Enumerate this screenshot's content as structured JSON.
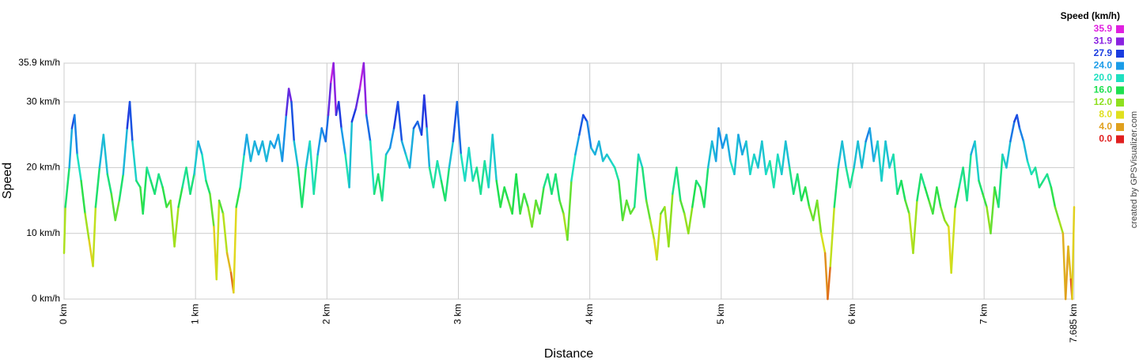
{
  "chart_data": {
    "type": "line",
    "x_label": "Distance",
    "y_label": "Speed",
    "credit": "created by GPSVisualizer.com",
    "legend_title": "Speed (km/h)",
    "colorscale": [
      {
        "value": 35.9,
        "label": "35.9",
        "color": "#e020e0"
      },
      {
        "value": 31.9,
        "label": "31.9",
        "color": "#8a22e0"
      },
      {
        "value": 27.9,
        "label": "27.9",
        "color": "#1a3ce0"
      },
      {
        "value": 24,
        "label": "24.0",
        "color": "#1a9ce8"
      },
      {
        "value": 20,
        "label": "20.0",
        "color": "#1ee0c0"
      },
      {
        "value": 16,
        "label": "16.0",
        "color": "#1ee050"
      },
      {
        "value": 12,
        "label": "12.0",
        "color": "#8ee01e"
      },
      {
        "value": 8,
        "label": "8.0",
        "color": "#e0e01e"
      },
      {
        "value": 4,
        "label": "4.0",
        "color": "#e0a01e"
      },
      {
        "value": 0,
        "label": "0.0",
        "color": "#e01e1e"
      }
    ],
    "xlim": [
      0,
      7.685
    ],
    "xticks": [
      {
        "value": 0,
        "label": "0 km"
      },
      {
        "value": 1,
        "label": "1 km"
      },
      {
        "value": 2,
        "label": "2 km"
      },
      {
        "value": 3,
        "label": "3 km"
      },
      {
        "value": 4,
        "label": "4 km"
      },
      {
        "value": 5,
        "label": "5 km"
      },
      {
        "value": 6,
        "label": "6 km"
      },
      {
        "value": 7,
        "label": "7 km"
      },
      {
        "value": 7.685,
        "label": "7.685 km"
      }
    ],
    "ylim": [
      0,
      35.9
    ],
    "yticks": [
      {
        "value": 0,
        "label": "0 km/h"
      },
      {
        "value": 10,
        "label": "10 km/h"
      },
      {
        "value": 20,
        "label": "20 km/h"
      },
      {
        "value": 30,
        "label": "30 km/h"
      },
      {
        "value": 35.9,
        "label": "35.9 km/h"
      }
    ],
    "grid": true,
    "x": [
      0,
      0.01,
      0.04,
      0.06,
      0.08,
      0.1,
      0.13,
      0.16,
      0.19,
      0.22,
      0.24,
      0.27,
      0.3,
      0.33,
      0.36,
      0.39,
      0.42,
      0.45,
      0.48,
      0.5,
      0.52,
      0.55,
      0.58,
      0.6,
      0.63,
      0.66,
      0.69,
      0.72,
      0.75,
      0.78,
      0.81,
      0.84,
      0.87,
      0.9,
      0.93,
      0.96,
      0.99,
      1.02,
      1.05,
      1.08,
      1.11,
      1.14,
      1.16,
      1.18,
      1.21,
      1.24,
      1.27,
      1.29,
      1.31,
      1.34,
      1.37,
      1.39,
      1.42,
      1.45,
      1.48,
      1.51,
      1.54,
      1.57,
      1.6,
      1.63,
      1.66,
      1.69,
      1.71,
      1.73,
      1.75,
      1.78,
      1.81,
      1.84,
      1.87,
      1.9,
      1.93,
      1.96,
      1.99,
      2.01,
      2.03,
      2.05,
      2.07,
      2.09,
      2.11,
      2.14,
      2.17,
      2.19,
      2.22,
      2.25,
      2.28,
      2.3,
      2.33,
      2.36,
      2.39,
      2.42,
      2.45,
      2.48,
      2.51,
      2.54,
      2.57,
      2.6,
      2.63,
      2.66,
      2.69,
      2.72,
      2.74,
      2.76,
      2.78,
      2.81,
      2.84,
      2.87,
      2.9,
      2.93,
      2.96,
      2.99,
      3.02,
      3.05,
      3.08,
      3.11,
      3.14,
      3.17,
      3.2,
      3.23,
      3.26,
      3.29,
      3.32,
      3.35,
      3.38,
      3.41,
      3.44,
      3.47,
      3.5,
      3.53,
      3.56,
      3.59,
      3.62,
      3.65,
      3.68,
      3.71,
      3.74,
      3.77,
      3.8,
      3.83,
      3.86,
      3.89,
      3.92,
      3.95,
      3.98,
      4.01,
      4.04,
      4.07,
      4.1,
      4.13,
      4.16,
      4.19,
      4.22,
      4.25,
      4.28,
      4.31,
      4.34,
      4.37,
      4.4,
      4.43,
      4.46,
      4.49,
      4.51,
      4.54,
      4.57,
      4.6,
      4.63,
      4.66,
      4.69,
      4.72,
      4.75,
      4.78,
      4.81,
      4.84,
      4.87,
      4.9,
      4.93,
      4.96,
      4.98,
      5.01,
      5.04,
      5.07,
      5.1,
      5.13,
      5.16,
      5.19,
      5.22,
      5.25,
      5.28,
      5.31,
      5.34,
      5.37,
      5.4,
      5.43,
      5.46,
      5.49,
      5.52,
      5.55,
      5.58,
      5.61,
      5.64,
      5.67,
      5.7,
      5.73,
      5.76,
      5.79,
      5.81,
      5.83,
      5.86,
      5.89,
      5.92,
      5.95,
      5.98,
      6.01,
      6.04,
      6.07,
      6.1,
      6.13,
      6.16,
      6.19,
      6.22,
      6.25,
      6.28,
      6.31,
      6.34,
      6.37,
      6.4,
      6.43,
      6.46,
      6.49,
      6.52,
      6.55,
      6.58,
      6.61,
      6.64,
      6.67,
      6.7,
      6.73,
      6.75,
      6.78,
      6.81,
      6.84,
      6.87,
      6.9,
      6.93,
      6.96,
      6.99,
      7.02,
      7.05,
      7.08,
      7.11,
      7.14,
      7.17,
      7.2,
      7.23,
      7.25,
      7.27,
      7.3,
      7.33,
      7.36,
      7.39,
      7.42,
      7.45,
      7.48,
      7.51,
      7.54,
      7.57,
      7.6,
      7.62,
      7.64,
      7.66,
      7.67,
      7.685
    ],
    "values": [
      7,
      14,
      20,
      26,
      28,
      22,
      18,
      13,
      9,
      5,
      14,
      20,
      25,
      19,
      16,
      12,
      15,
      19,
      26,
      30,
      24,
      18,
      17,
      13,
      20,
      18,
      16,
      19,
      17,
      14,
      15,
      8,
      14,
      17,
      20,
      16,
      19,
      24,
      22,
      18,
      16,
      11,
      3,
      15,
      13,
      7,
      4,
      1,
      14,
      17,
      22,
      25,
      21,
      24,
      22,
      24,
      21,
      24,
      23,
      25,
      21,
      28,
      32,
      30,
      24,
      20,
      14,
      20,
      24,
      16,
      22,
      26,
      24,
      28,
      33,
      35.9,
      28,
      30,
      26,
      22,
      17,
      27,
      29,
      32,
      35.9,
      28,
      24,
      16,
      19,
      15,
      22,
      23,
      26,
      30,
      24,
      22,
      20,
      26,
      27,
      25,
      31,
      26,
      20,
      17,
      21,
      18,
      15,
      20,
      24,
      30,
      22,
      18,
      23,
      18,
      20,
      16,
      21,
      17,
      25,
      18,
      14,
      17,
      15,
      13,
      19,
      13,
      16,
      14,
      11,
      15,
      13,
      17,
      19,
      16,
      19,
      15,
      13,
      9,
      18,
      22,
      25,
      28,
      27,
      23,
      22,
      24,
      21,
      22,
      21,
      20,
      18,
      12,
      15,
      13,
      14,
      22,
      20,
      15,
      12,
      9,
      6,
      13,
      14,
      8,
      16,
      20,
      15,
      13,
      10,
      14,
      18,
      17,
      14,
      20,
      24,
      21,
      26,
      23,
      25,
      21,
      19,
      25,
      22,
      24,
      19,
      22,
      20,
      24,
      19,
      21,
      17,
      22,
      19,
      24,
      20,
      16,
      19,
      15,
      17,
      14,
      12,
      15,
      10,
      7,
      0,
      5,
      14,
      20,
      24,
      20,
      17,
      20,
      24,
      20,
      24,
      26,
      21,
      24,
      18,
      24,
      20,
      22,
      16,
      18,
      15,
      13,
      7,
      15,
      19,
      17,
      15,
      13,
      17,
      14,
      12,
      11,
      4,
      14,
      17,
      20,
      15,
      22,
      24,
      18,
      16,
      14,
      10,
      17,
      14,
      22,
      20,
      24,
      27,
      28,
      26,
      24,
      21,
      19,
      20,
      17,
      18,
      19,
      17,
      14,
      12,
      10,
      0,
      8,
      3,
      0,
      14
    ]
  }
}
